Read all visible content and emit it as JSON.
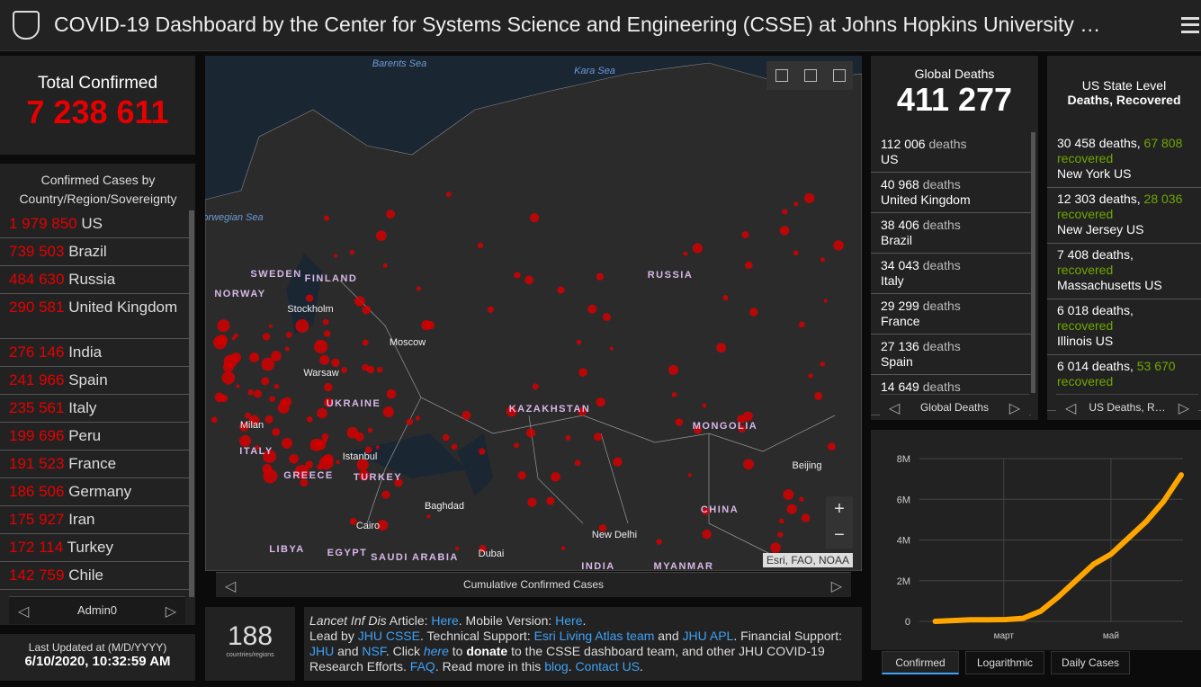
{
  "header": {
    "title": "COVID-19 Dashboard by the Center for Systems Science and Engineering (CSSE) at Johns Hopkins University …"
  },
  "total": {
    "label": "Total Confirmed",
    "value": "7 238 611"
  },
  "countries": {
    "title": "Confirmed Cases by Country/Region/Sovereignty",
    "rows": [
      {
        "value": "1 979 850",
        "name": "US"
      },
      {
        "value": "739 503",
        "name": "Brazil"
      },
      {
        "value": "484 630",
        "name": "Russia"
      },
      {
        "value": "290 581",
        "name": "United Kingdom"
      },
      {
        "value": "276 146",
        "name": "India"
      },
      {
        "value": "241 966",
        "name": "Spain"
      },
      {
        "value": "235 561",
        "name": "Italy"
      },
      {
        "value": "199 696",
        "name": "Peru"
      },
      {
        "value": "191 523",
        "name": "France"
      },
      {
        "value": "186 506",
        "name": "Germany"
      },
      {
        "value": "175 927",
        "name": "Iran"
      },
      {
        "value": "172 114",
        "name": "Turkey"
      },
      {
        "value": "142 759",
        "name": "Chile"
      }
    ],
    "footer": "Admin0"
  },
  "last_updated": {
    "label": "Last Updated at (M/D/YYYY)",
    "value": "6/10/2020, 10:32:59 AM"
  },
  "map": {
    "labels": [
      "Barents Sea",
      "Kara Sea",
      "Norwegian Sea",
      "SWEDEN",
      "FINLAND",
      "NORWAY",
      "Stockholm",
      "RUSSIA",
      "Moscow",
      "Warsaw",
      "UKRAINE",
      "KAZAKHSTAN",
      "MONGOLIA",
      "Milan",
      "ITALY",
      "Istanbul",
      "TURKEY",
      "GREECE",
      "Baghdad",
      "CHINA",
      "Beijing",
      "Cairo",
      "New Delhi",
      "LIBYA",
      "EGYPT",
      "SAUDI ARABIA",
      "Dubai",
      "INDIA",
      "MYANMAR"
    ],
    "attribution": "Esri, FAO, NOAA",
    "footer": "Cumulative Confirmed Cases"
  },
  "count": {
    "value": "188",
    "label": "countries/regions"
  },
  "info": {
    "paragraphs": [
      [
        {
          "text": "Lancet Inf Dis",
          "style": "italic"
        },
        " Article: ",
        {
          "text": "Here",
          "style": "link"
        },
        ". Mobile Version: ",
        {
          "text": "Here",
          "style": "link"
        },
        "."
      ],
      [
        "Lead by ",
        {
          "text": "JHU CSSE",
          "style": "link"
        },
        ". Technical Support: ",
        {
          "text": "Esri Living Atlas team",
          "style": "link"
        },
        " and ",
        {
          "text": "JHU APL",
          "style": "link"
        },
        ". Financial Support: ",
        {
          "text": "JHU",
          "style": "link"
        },
        " and ",
        {
          "text": "NSF",
          "style": "link"
        },
        ". Click ",
        {
          "text": "here",
          "style": "link-italic"
        },
        " to ",
        {
          "text": "donate",
          "style": "bold"
        },
        " to the CSSE dashboard team, and other JHU COVID-19 Research Efforts. ",
        {
          "text": "FAQ",
          "style": "link"
        },
        ". Read more in this ",
        {
          "text": "blog",
          "style": "link"
        },
        ". ",
        {
          "text": "Contact US",
          "style": "link"
        },
        "."
      ]
    ]
  },
  "global_deaths": {
    "title": "Global Deaths",
    "value": "411 277",
    "rows": [
      {
        "value": "112 006",
        "unit": "deaths",
        "name": "US"
      },
      {
        "value": "40 968",
        "unit": "deaths",
        "name": "United Kingdom"
      },
      {
        "value": "38 406",
        "unit": "deaths",
        "name": "Brazil"
      },
      {
        "value": "34 043",
        "unit": "deaths",
        "name": "Italy"
      },
      {
        "value": "29 299",
        "unit": "deaths",
        "name": "France"
      },
      {
        "value": "27 136",
        "unit": "deaths",
        "name": "Spain"
      },
      {
        "value": "14 649",
        "unit": "deaths"
      }
    ],
    "footer": "Global Deaths"
  },
  "us_state": {
    "title": "US State Level",
    "subtitle": "Deaths, Recovered",
    "rows": [
      {
        "deaths": "30 458 deaths,",
        "recovered": "67 808",
        "recovered_label": "recovered",
        "name": "New York US"
      },
      {
        "deaths": "12 303 deaths,",
        "recovered": "28 036",
        "recovered_label": "recovered",
        "name": "New Jersey US"
      },
      {
        "deaths": "7 408 deaths,",
        "recovered_label": "recovered",
        "name": "Massachusetts US"
      },
      {
        "deaths": "6 018 deaths,",
        "recovered_label": "recovered",
        "name": "Illinois US"
      },
      {
        "deaths": "6 014 deaths,",
        "recovered": "53 670",
        "recovered_label": "recovered"
      }
    ],
    "footer": "US Deaths, R…"
  },
  "chart_tabs": [
    "Confirmed",
    "Logarithmic",
    "Daily Cases"
  ],
  "chart_data": {
    "type": "line",
    "x": [
      0,
      10,
      20,
      30,
      40,
      50,
      60,
      70,
      80,
      90,
      100,
      110,
      120,
      130,
      140
    ],
    "series": [
      {
        "name": "Confirmed",
        "color": "#ffa500",
        "values": [
          0,
          40000,
          75000,
          80000,
          90000,
          150000,
          500000,
          1200000,
          2000000,
          2800000,
          3300000,
          4100000,
          4900000,
          5900000,
          7200000
        ]
      }
    ],
    "xlim": [
      -9,
      141
    ],
    "xticks": [
      {
        "value": 39,
        "label": "март"
      },
      {
        "value": 100,
        "label": "май"
      }
    ],
    "ylim": [
      0,
      8000000
    ],
    "yticks": [
      0,
      {
        "value": 2000000,
        "label": "2M"
      },
      {
        "value": 4000000,
        "label": "4M"
      },
      {
        "value": 6000000,
        "label": "6M"
      },
      {
        "value": 8000000,
        "label": "8M"
      }
    ],
    "grid": true
  }
}
